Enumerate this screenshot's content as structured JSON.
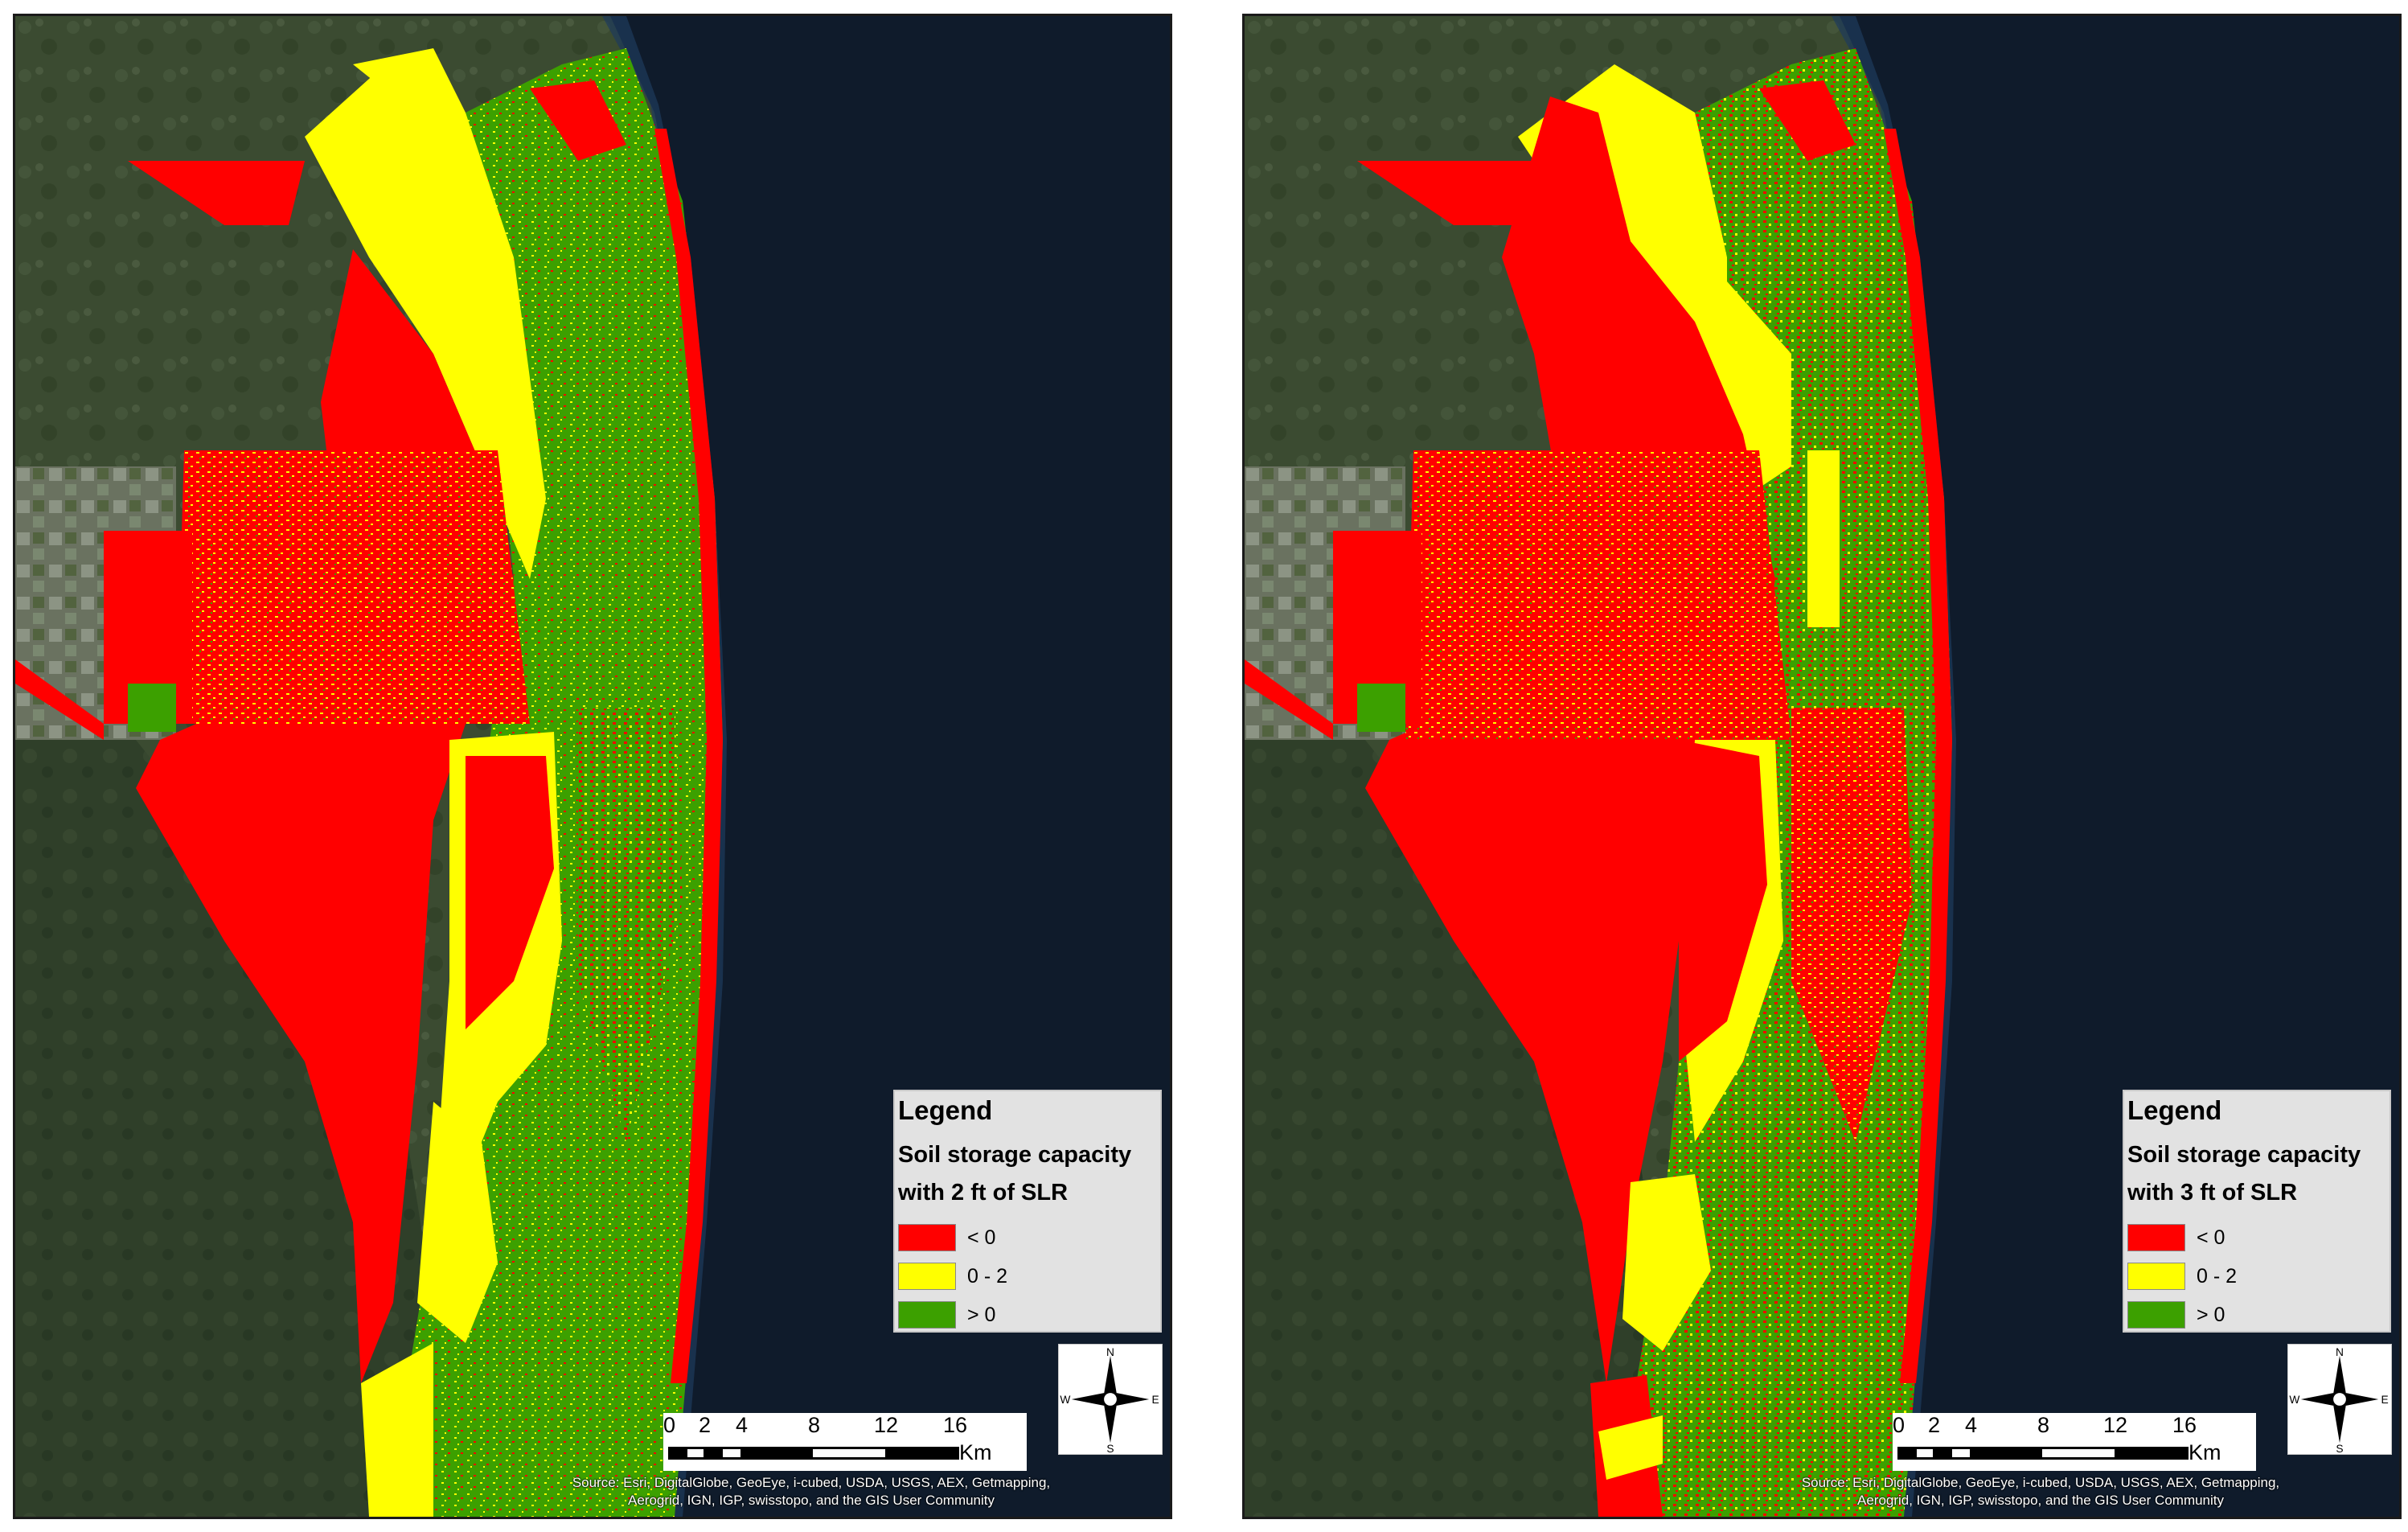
{
  "panels": [
    {
      "legend": {
        "title": "Legend",
        "subtitle_line1": "Soil storage capacity",
        "subtitle_line2": "with 2 ft of SLR",
        "items": [
          {
            "label": "< 0",
            "color": "#ff0000"
          },
          {
            "label": "0 - 2",
            "color": "#ffff00"
          },
          {
            "label": "> 0",
            "color": "#3ca000"
          }
        ]
      },
      "scale": {
        "ticks": [
          "0",
          "2",
          "4",
          "8",
          "12",
          "16"
        ],
        "unit": "Km"
      },
      "north_arrow": {
        "n": "N",
        "s": "S",
        "e": "E",
        "w": "W"
      },
      "attribution_line1": "Source: Esri, DigitalGlobe, GeoEye, i-cubed, USDA, USGS, AEX, Getmapping,",
      "attribution_line2": "Aerogrid, IGN, IGP, swisstopo, and the GIS User Community"
    },
    {
      "legend": {
        "title": "Legend",
        "subtitle_line1": "Soil storage capacity",
        "subtitle_line2": "with 3 ft of SLR",
        "items": [
          {
            "label": "< 0",
            "color": "#ff0000"
          },
          {
            "label": "0 - 2",
            "color": "#ffff00"
          },
          {
            "label": "> 0",
            "color": "#3ca000"
          }
        ]
      },
      "scale": {
        "ticks": [
          "0",
          "2",
          "4",
          "8",
          "12",
          "16"
        ],
        "unit": "Km"
      },
      "north_arrow": {
        "n": "N",
        "s": "S",
        "e": "E",
        "w": "W"
      },
      "attribution_line1": "Source: Esri, DigitalGlobe, GeoEye, i-cubed, USDA, USGS, AEX, Getmapping,",
      "attribution_line2": "Aerogrid, IGN, IGP, swisstopo, and the GIS User Community"
    }
  ],
  "colors": {
    "red": "#ff0000",
    "yellow": "#ffff00",
    "green": "#3ca000",
    "ocean": "#0f1b2b",
    "land": "#3a4a30"
  }
}
